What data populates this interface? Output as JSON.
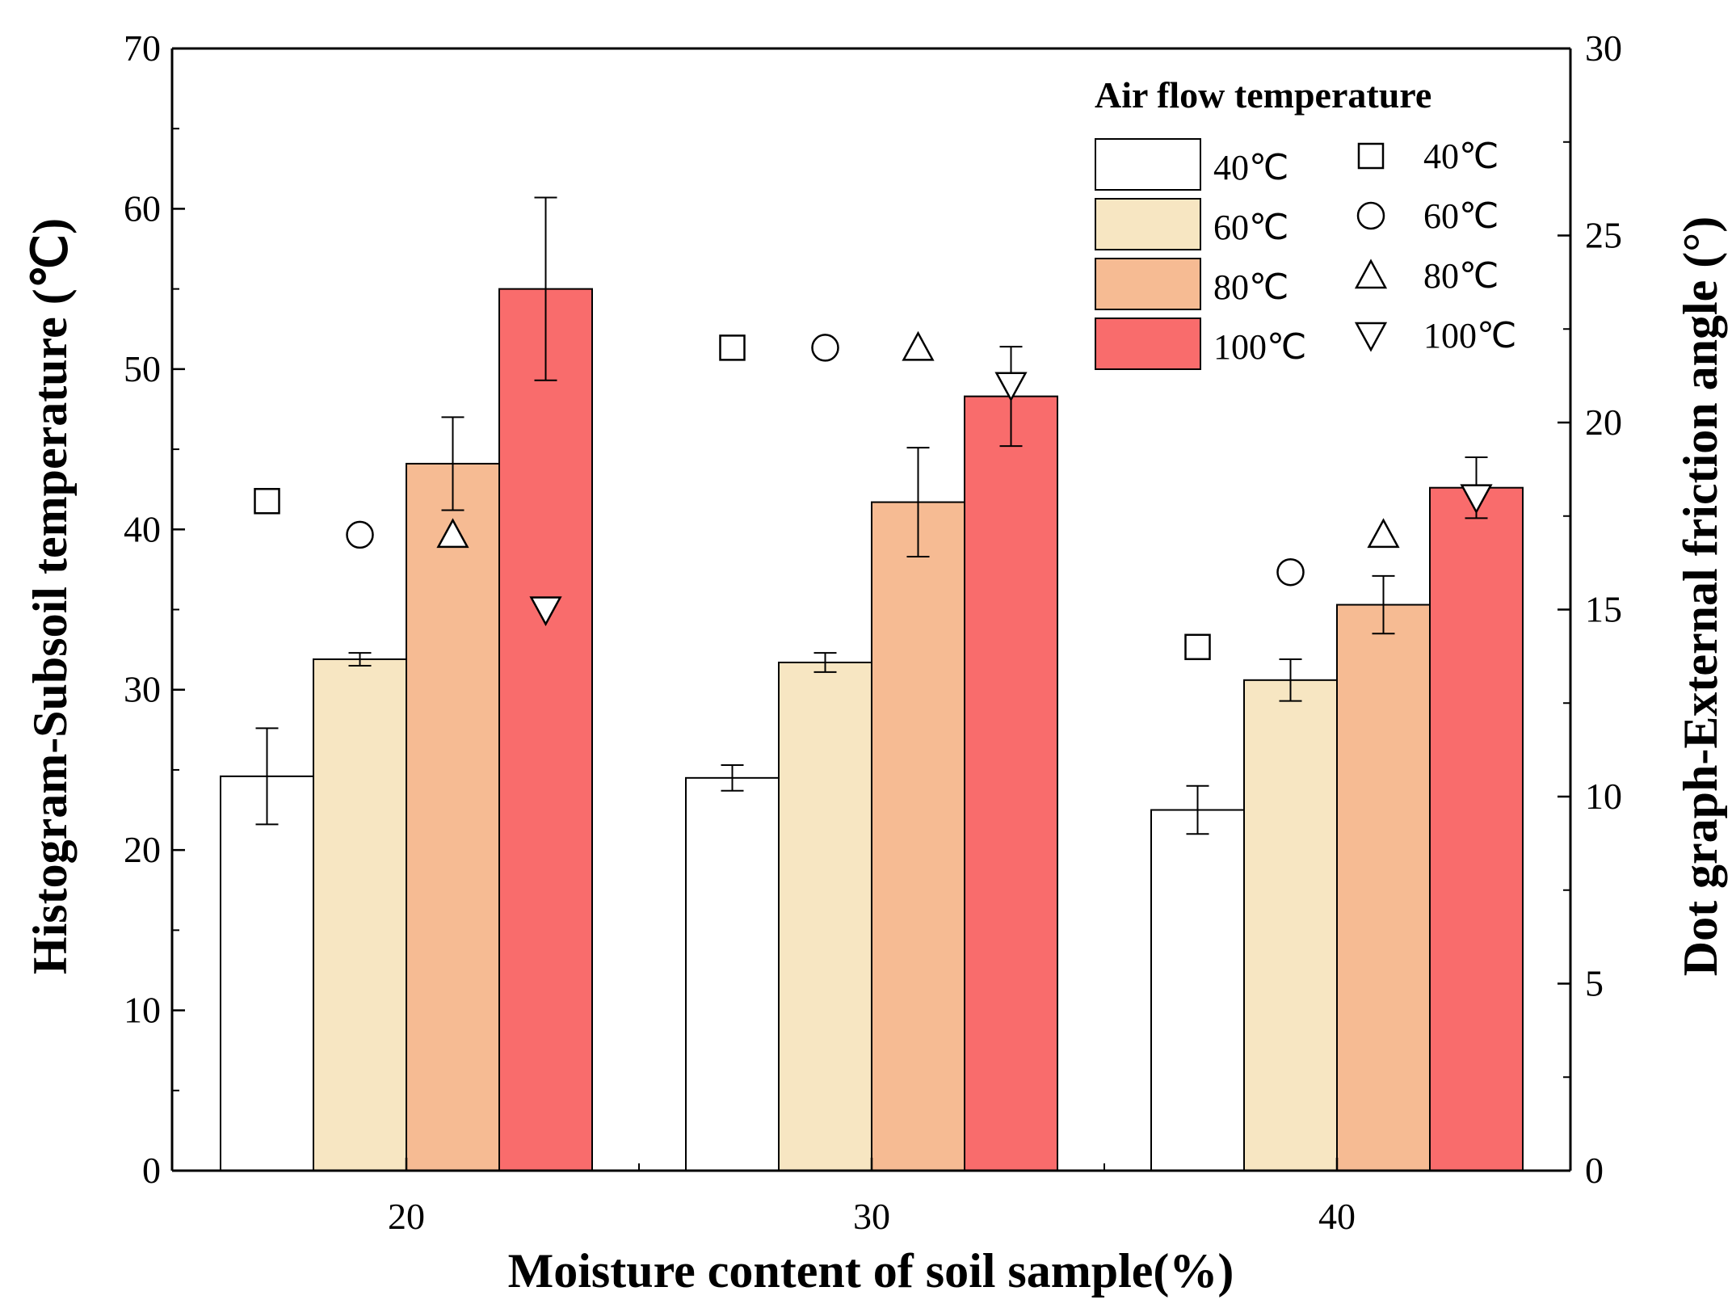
{
  "chart_data": {
    "type": "bar",
    "title": "",
    "xlabel": "Moisture content of soil sample(%)",
    "ylabel": "Histogram-Subsoil temperature (℃)",
    "y2label": "Dot graph-External friction angle (°)",
    "categories": [
      "20",
      "30",
      "40"
    ],
    "ylim": [
      0,
      70
    ],
    "y2lim": [
      0,
      30
    ],
    "yticks": [
      "0",
      "10",
      "20",
      "30",
      "40",
      "50",
      "60",
      "70"
    ],
    "y2ticks": [
      "0",
      "5",
      "10",
      "15",
      "20",
      "25",
      "30"
    ],
    "legend_title": "Air flow temperature",
    "legend_position": "top-right",
    "bar_series": [
      {
        "name": "40℃",
        "color": "#ffffff",
        "values": [
          24.6,
          24.5,
          22.5
        ],
        "errors": [
          3.0,
          0.8,
          1.5
        ]
      },
      {
        "name": "60℃",
        "color": "#f7e6c2",
        "values": [
          31.9,
          31.7,
          30.6
        ],
        "errors": [
          0.4,
          0.6,
          1.3
        ]
      },
      {
        "name": "80℃",
        "color": "#f6bb93",
        "values": [
          44.1,
          41.7,
          35.3
        ],
        "errors": [
          2.9,
          3.4,
          1.8
        ]
      },
      {
        "name": "100℃",
        "color": "#f96c6c",
        "values": [
          55.0,
          48.3,
          42.6
        ],
        "errors": [
          5.7,
          3.1,
          1.9
        ]
      }
    ],
    "dot_series": [
      {
        "name": "40℃",
        "marker": "square",
        "values": [
          17.9,
          22.0,
          14.0
        ]
      },
      {
        "name": "60℃",
        "marker": "circle",
        "values": [
          17.0,
          22.0,
          16.0
        ]
      },
      {
        "name": "80℃",
        "marker": "triangle-up",
        "values": [
          17.0,
          22.0,
          17.0
        ]
      },
      {
        "name": "100℃",
        "marker": "triangle-down",
        "values": [
          15.0,
          21.0,
          18.0
        ]
      }
    ]
  }
}
